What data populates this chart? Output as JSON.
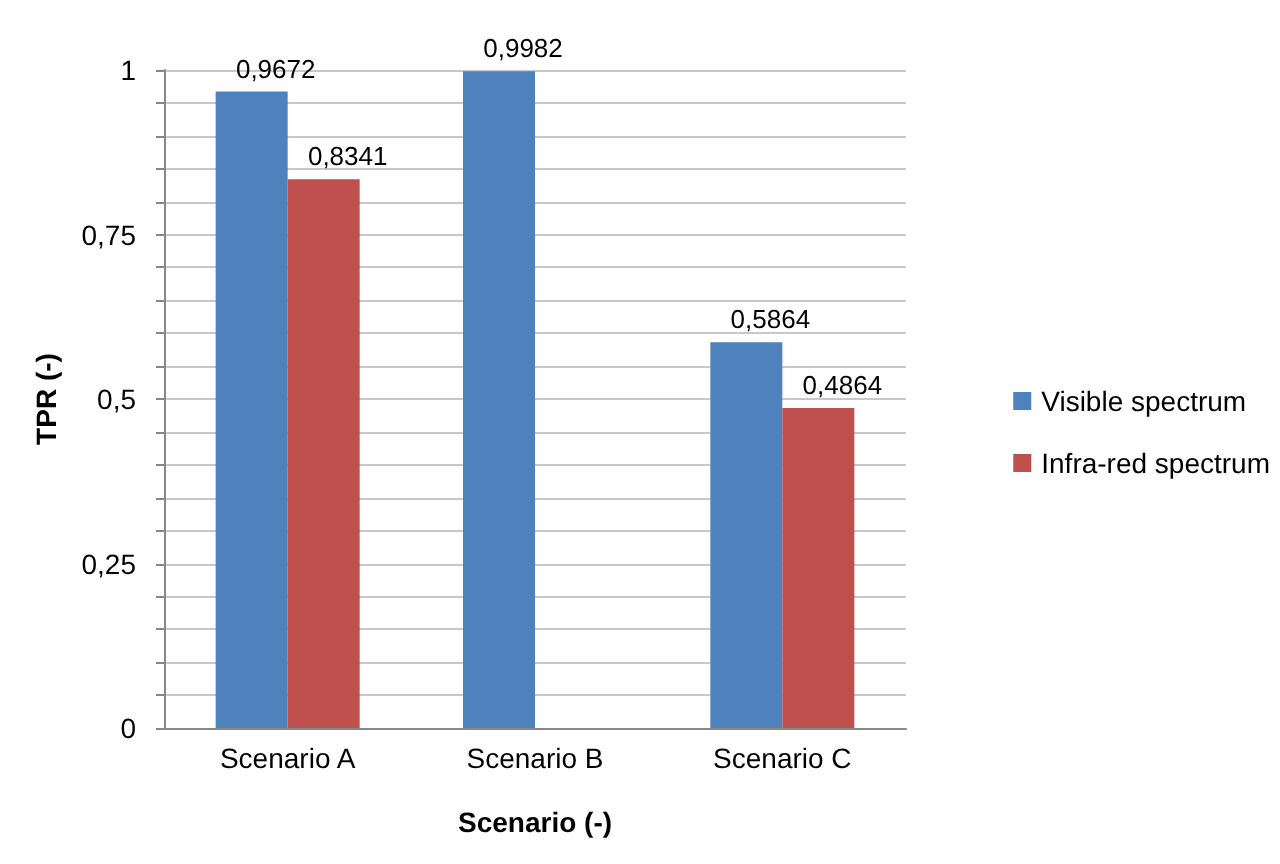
{
  "chart_data": {
    "type": "bar",
    "xlabel": "Scenario (-)",
    "ylabel": "TPR (-)",
    "categories": [
      "Scenario A",
      "Scenario B",
      "Scenario C"
    ],
    "series": [
      {
        "name": "Visible spectrum",
        "color": "#4f81bd",
        "values": [
          0.9672,
          0.9982,
          0.5864
        ],
        "value_labels": [
          "0,9672",
          "0,9982",
          "0,5864"
        ]
      },
      {
        "name": "Infra-red spectrum",
        "color": "#c0504d",
        "values": [
          0.8341,
          null,
          0.4864
        ],
        "value_labels": [
          "0,8341",
          null,
          "0,4864"
        ]
      }
    ],
    "ylim": [
      0,
      1
    ],
    "yticks": [
      0,
      {
        "value": 0.05,
        "label": null
      },
      {
        "value": 0.1,
        "label": null
      },
      {
        "value": 0.15,
        "label": null
      },
      {
        "value": 0.2,
        "label": null
      },
      {
        "value": 0.25,
        "label": "0,25"
      },
      {
        "value": 0.3,
        "label": null
      },
      {
        "value": 0.35,
        "label": null
      },
      {
        "value": 0.4,
        "label": null
      },
      {
        "value": 0.45,
        "label": null
      },
      {
        "value": 0.5,
        "label": "0,5"
      },
      {
        "value": 0.55,
        "label": null
      },
      {
        "value": 0.6,
        "label": null
      },
      {
        "value": 0.65,
        "label": null
      },
      {
        "value": 0.7,
        "label": null
      },
      {
        "value": 0.75,
        "label": "0,75"
      },
      {
        "value": 0.8,
        "label": null
      },
      {
        "value": 0.85,
        "label": null
      },
      {
        "value": 0.9,
        "label": null
      },
      {
        "value": 0.95,
        "label": null
      },
      1
    ],
    "grid": "y",
    "legend": "right"
  }
}
